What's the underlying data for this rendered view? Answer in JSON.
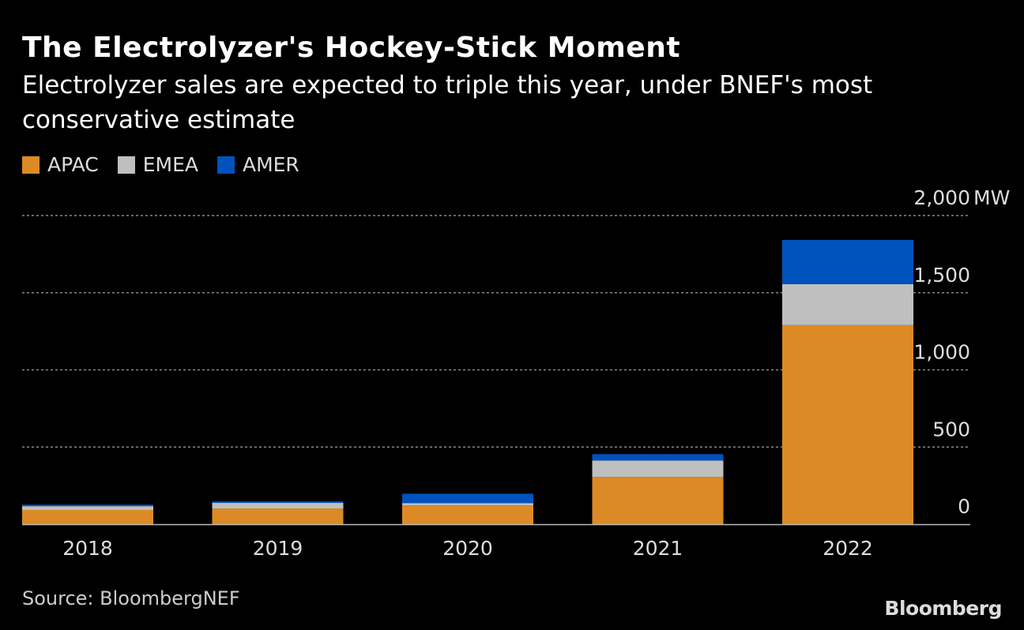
{
  "chart_data": {
    "type": "bar",
    "stacked": true,
    "title": "The Electrolyzer's Hockey-Stick Moment",
    "subtitle": "Electrolyzer sales are expected to triple this year, under BNEF's most conservative estimate",
    "xlabel": "",
    "ylabel": "MW",
    "ylim": [
      0,
      2000
    ],
    "yticks": [
      0,
      500,
      1000,
      1500,
      2000
    ],
    "ytick_labels": [
      "0",
      "500",
      "1,000",
      "1,500",
      "2,000"
    ],
    "yunit": "MW",
    "grid": true,
    "legend_position": "top-left",
    "categories": [
      "2018",
      "2019",
      "2020",
      "2021",
      "2022"
    ],
    "series": [
      {
        "name": "APAC",
        "color": "#DB8A26",
        "values": [
          92,
          102,
          122,
          306,
          1290
        ]
      },
      {
        "name": "EMEA",
        "color": "#BFBFBF",
        "values": [
          25,
          36,
          15,
          107,
          266
        ]
      },
      {
        "name": "AMER",
        "color": "#0052BC",
        "values": [
          10,
          10,
          61,
          41,
          286
        ]
      }
    ]
  },
  "source": "Source: BloombergNEF",
  "logo": "Bloomberg"
}
